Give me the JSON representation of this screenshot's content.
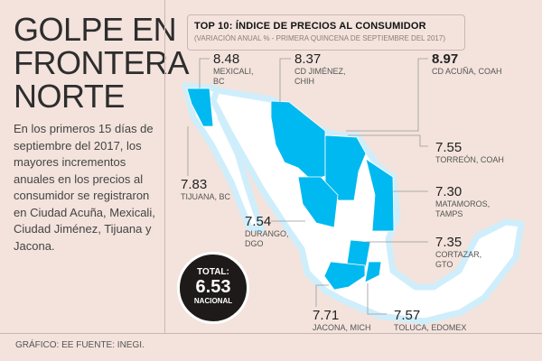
{
  "headline": [
    "GOLPE EN",
    "FRONTERA",
    "NORTE"
  ],
  "body_text": "En los primeros 15 días de septiembre del 2017, los mayores incrementos anuales en los precios al consumidor se registraron en Ciudad Acuña, Mexicali, Ciudad Jiménez, Tijuana y Jacona.",
  "credit": "GRÁFICO: EE  FUENTE: INEGI.",
  "legend_box": {
    "title": "TOP 10: ÍNDICE DE PRECIOS AL CONSUMIDOR",
    "subtitle": "(VARIACIÓN ANUAL % - PRIMERA QUINCENA DE SEPTIEMBRE DEL 2017)"
  },
  "colors": {
    "highlight": "#00b9f0",
    "background": "#f3e3dc",
    "land": "#ffffff",
    "coast_glow": "#cfeefb"
  },
  "cities": [
    {
      "value": "8.48",
      "place": "MEXICALI, BC"
    },
    {
      "value": "8.37",
      "place": "CD JIMÉNEZ, CHIH"
    },
    {
      "value": "8.97",
      "place": "CD ACUÑA, COAH"
    },
    {
      "value": "7.55",
      "place": "TORREÓN, COAH"
    },
    {
      "value": "7.83",
      "place": "TIJUANA, BC"
    },
    {
      "value": "7.30",
      "place": "MATAMOROS, TAMPS"
    },
    {
      "value": "7.54",
      "place": "DURANGO, DGO"
    },
    {
      "value": "7.35",
      "place": "CORTAZAR, GTO"
    },
    {
      "value": "7.71",
      "place": "JACONA, MICH"
    },
    {
      "value": "7.57",
      "place": "TOLUCA, EDOMEX"
    }
  ],
  "total": {
    "label": "TOTAL:",
    "value": "6.53",
    "sublabel": "NACIONAL"
  }
}
